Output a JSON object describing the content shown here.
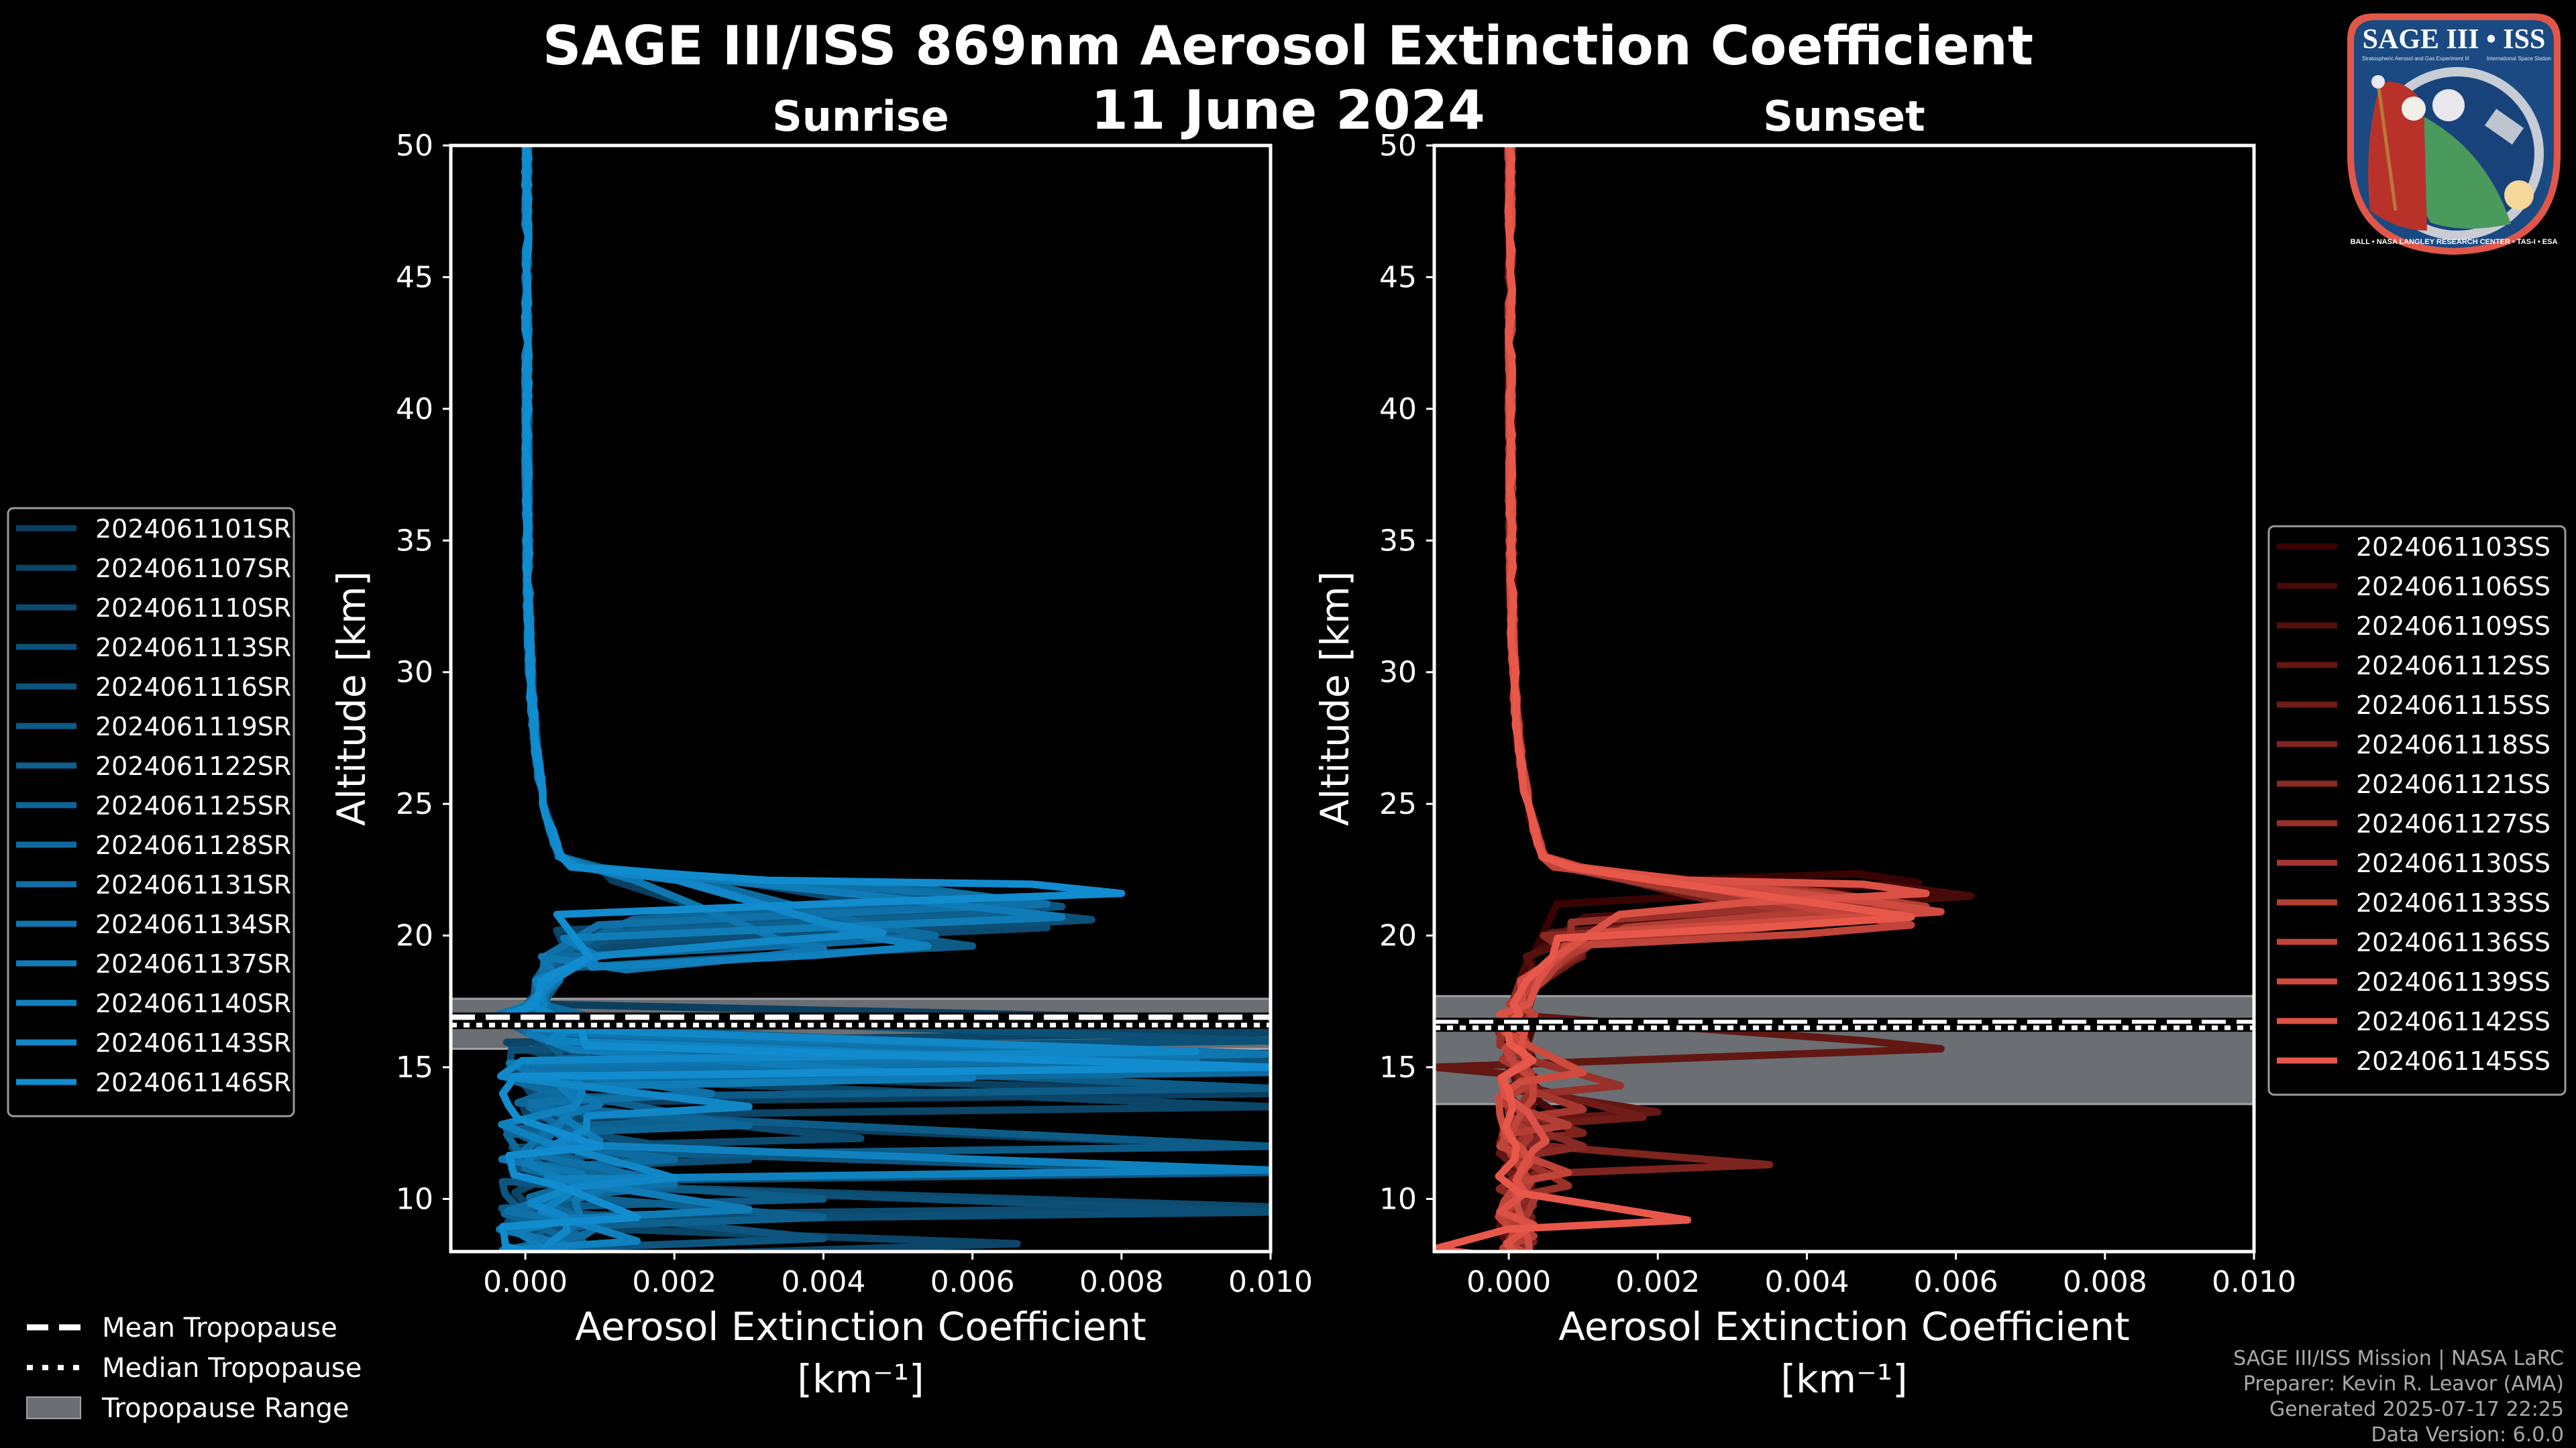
{
  "figure": {
    "title": "SAGE III/ISS 869nm Aerosol Extinction Coefficient",
    "subtitle": "11 June 2024",
    "background": "#000000"
  },
  "logo": {
    "title": "SAGE III • ISS",
    "line1": "Stratospheric Aerosol and Gas Experiment III",
    "line2": "International Space Station",
    "ring_text": "BALL • NASA LANGLEY RESEARCH CENTER • TAS-I • ESA"
  },
  "footer": {
    "lines": [
      "SAGE III/ISS Mission | NASA LaRC",
      "Preparer: Kevin R. Leavor (AMA)",
      "Generated 2025-07-17 22:25",
      "Data Version: 6.0.0"
    ]
  },
  "tropopause_legend": {
    "items": [
      {
        "label": "Mean Tropopause",
        "style": "dashed"
      },
      {
        "label": "Median Tropopause",
        "style": "dotted"
      },
      {
        "label": "Tropopause Range",
        "style": "band"
      }
    ],
    "band_color": "#6b6e72"
  },
  "chart_data": [
    {
      "type": "line",
      "panel": "left",
      "title": "Sunrise",
      "xlabel": "Aerosol Extinction Coefficient",
      "xunits": "[km⁻¹]",
      "ylabel": "Altitude [km]",
      "xlim": [
        -0.001,
        0.01
      ],
      "ylim": [
        8,
        50
      ],
      "xticks": [
        0.0,
        0.002,
        0.004,
        0.006,
        0.008,
        0.01
      ],
      "xtick_labels": [
        "0.000",
        "0.002",
        "0.004",
        "0.006",
        "0.008",
        "0.010"
      ],
      "yticks": [
        10,
        15,
        20,
        25,
        30,
        35,
        40,
        45,
        50
      ],
      "ytick_labels": [
        "10",
        "15",
        "20",
        "25",
        "30",
        "35",
        "40",
        "45",
        "50"
      ],
      "tropopause": {
        "mean": 16.9,
        "median": 16.6,
        "range": [
          15.7,
          17.6
        ]
      },
      "legend_position": "left",
      "color_start": "#0b3f5f",
      "color_end": "#118ccf",
      "series": [
        {
          "name": "2024061101SR",
          "peak_alt": 20.5,
          "peak": 0.003,
          "low": [
            [
              16.8,
              0.01
            ],
            [
              14.0,
              0.01
            ],
            [
              12.0,
              0.01
            ]
          ]
        },
        {
          "name": "2024061107SR",
          "peak_alt": 21.0,
          "peak": 0.0066,
          "low": [
            [
              16.3,
              0.01
            ],
            [
              13.5,
              0.01
            ],
            [
              8.3,
              0.0066
            ]
          ]
        },
        {
          "name": "2024061110SR",
          "peak_alt": 20.3,
          "peak": 0.007,
          "low": [
            [
              15.0,
              0.01
            ],
            [
              12.3,
              0.0045
            ],
            [
              9.7,
              0.01
            ]
          ]
        },
        {
          "name": "2024061113SR",
          "peak_alt": 20.6,
          "peak": 0.0076,
          "low": [
            [
              16.0,
              0.01
            ],
            [
              11.5,
              0.003
            ],
            [
              9.5,
              0.01
            ]
          ]
        },
        {
          "name": "2024061116SR",
          "peak_alt": 21.1,
          "peak": 0.0072,
          "low": [
            [
              15.2,
              0.01
            ],
            [
              11.0,
              0.01
            ],
            [
              8.5,
              0.004
            ]
          ]
        },
        {
          "name": "2024061119SR",
          "peak_alt": 19.6,
          "peak": 0.006,
          "low": [
            [
              14.2,
              0.01
            ],
            [
              12.0,
              0.01
            ],
            [
              10.0,
              0.004
            ]
          ]
        },
        {
          "name": "2024061122SR",
          "peak_alt": 20.9,
          "peak": 0.0068,
          "low": [
            [
              15.5,
              0.01
            ],
            [
              13.0,
              0.0025
            ],
            [
              9.3,
              0.004
            ]
          ]
        },
        {
          "name": "2024061125SR",
          "peak_alt": 21.4,
          "peak": 0.0064,
          "low": [
            [
              15.0,
              0.008
            ],
            [
              12.8,
              0.003
            ],
            [
              10.5,
              0.002
            ]
          ]
        },
        {
          "name": "2024061128SR",
          "peak_alt": 20.0,
          "peak": 0.0055,
          "low": [
            [
              14.8,
              0.01
            ],
            [
              11.5,
              0.002
            ],
            [
              9.0,
              0.001
            ]
          ]
        },
        {
          "name": "2024061131SR",
          "peak_alt": 21.2,
          "peak": 0.007,
          "low": [
            [
              15.3,
              0.009
            ],
            [
              14.0,
              0.0025
            ],
            [
              10.6,
              0.002
            ]
          ]
        },
        {
          "name": "2024061134SR",
          "peak_alt": 19.5,
          "peak": 0.004,
          "low": [
            [
              15.5,
              0.01
            ],
            [
              13.6,
              0.001
            ],
            [
              10.3,
              0.001
            ]
          ]
        },
        {
          "name": "2024061137SR",
          "peak_alt": 20.7,
          "peak": 0.0072,
          "low": [
            [
              14.6,
              0.006
            ],
            [
              12.2,
              0.001
            ],
            [
              9.6,
              0.003
            ]
          ]
        },
        {
          "name": "2024061140SR",
          "peak_alt": 19.6,
          "peak": 0.0054,
          "low": [
            [
              15.0,
              0.01
            ],
            [
              11.1,
              0.01
            ],
            [
              8.4,
              0.0015
            ]
          ]
        },
        {
          "name": "2024061143SR",
          "peak_alt": 20.1,
          "peak": 0.0048,
          "low": [
            [
              15.6,
              0.009
            ],
            [
              13.5,
              0.003
            ],
            [
              10.8,
              0.002
            ]
          ]
        },
        {
          "name": "2024061146SR",
          "peak_alt": 21.6,
          "peak": 0.008,
          "low": [
            [
              15.0,
              0.01
            ],
            [
              12.0,
              0.001
            ],
            [
              9.3,
              0.0015
            ]
          ]
        }
      ]
    },
    {
      "type": "line",
      "panel": "right",
      "title": "Sunset",
      "xlabel": "Aerosol Extinction Coefficient",
      "xunits": "[km⁻¹]",
      "ylabel": "Altitude [km]",
      "xlim": [
        -0.001,
        0.01
      ],
      "ylim": [
        8,
        50
      ],
      "xticks": [
        0.0,
        0.002,
        0.004,
        0.006,
        0.008,
        0.01
      ],
      "xtick_labels": [
        "0.000",
        "0.002",
        "0.004",
        "0.006",
        "0.008",
        "0.010"
      ],
      "yticks": [
        10,
        15,
        20,
        25,
        30,
        35,
        40,
        45,
        50
      ],
      "ytick_labels": [
        "10",
        "15",
        "20",
        "25",
        "30",
        "35",
        "40",
        "45",
        "50"
      ],
      "tropopause": {
        "mean": 16.7,
        "median": 16.5,
        "range": [
          13.6,
          17.7
        ]
      },
      "legend_position": "right",
      "color_start": "#3a0303",
      "color_end": "#e8584a",
      "series": [
        {
          "name": "2024061103SS",
          "peak_alt": 22.0,
          "peak": 0.0055,
          "low": [
            [
              14.0,
              0.0005
            ]
          ]
        },
        {
          "name": "2024061106SS",
          "peak_alt": 21.5,
          "peak": 0.0062,
          "low": [
            [
              13.0,
              0.0008
            ]
          ]
        },
        {
          "name": "2024061109SS",
          "peak_alt": 21.2,
          "peak": 0.005,
          "low": [
            [
              12.5,
              0.0005
            ]
          ]
        },
        {
          "name": "2024061112SS",
          "peak_alt": 20.9,
          "peak": 0.0045,
          "low": [
            [
              16.0,
              0.0048
            ],
            [
              15.7,
              0.0058
            ],
            [
              15.0,
              -0.001
            ],
            [
              13.3,
              0.002
            ]
          ]
        },
        {
          "name": "2024061115SS",
          "peak_alt": 20.5,
          "peak": 0.004,
          "low": [
            [
              13.1,
              0.0018
            ]
          ]
        },
        {
          "name": "2024061118SS",
          "peak_alt": 21.0,
          "peak": 0.0048,
          "low": [
            [
              11.3,
              0.0035
            ],
            [
              12.5,
              0.001
            ]
          ]
        },
        {
          "name": "2024061121SS",
          "peak_alt": 20.8,
          "peak": 0.0052,
          "low": [
            [
              12.0,
              0.001
            ]
          ]
        },
        {
          "name": "2024061127SS",
          "peak_alt": 21.3,
          "peak": 0.005,
          "low": [
            [
              14.3,
              0.0015
            ],
            [
              10.5,
              0.0008
            ]
          ]
        },
        {
          "name": "2024061130SS",
          "peak_alt": 20.6,
          "peak": 0.0044,
          "low": [
            [
              13.4,
              0.001
            ]
          ]
        },
        {
          "name": "2024061133SS",
          "peak_alt": 21.1,
          "peak": 0.0056,
          "low": [
            [
              12.8,
              0.0008
            ]
          ]
        },
        {
          "name": "2024061136SS",
          "peak_alt": 20.4,
          "peak": 0.0054,
          "low": [
            [
              11.0,
              0.0008
            ]
          ]
        },
        {
          "name": "2024061139SS",
          "peak_alt": 20.9,
          "peak": 0.0058,
          "low": [
            [
              14.8,
              0.001
            ]
          ]
        },
        {
          "name": "2024061142SS",
          "peak_alt": 21.6,
          "peak": 0.0056,
          "low": [
            [
              12.2,
              0.0005
            ]
          ]
        },
        {
          "name": "2024061145SS",
          "peak_alt": 20.7,
          "peak": 0.0054,
          "low": [
            [
              9.2,
              0.0024
            ],
            [
              8.1,
              -0.001
            ]
          ]
        }
      ]
    }
  ]
}
